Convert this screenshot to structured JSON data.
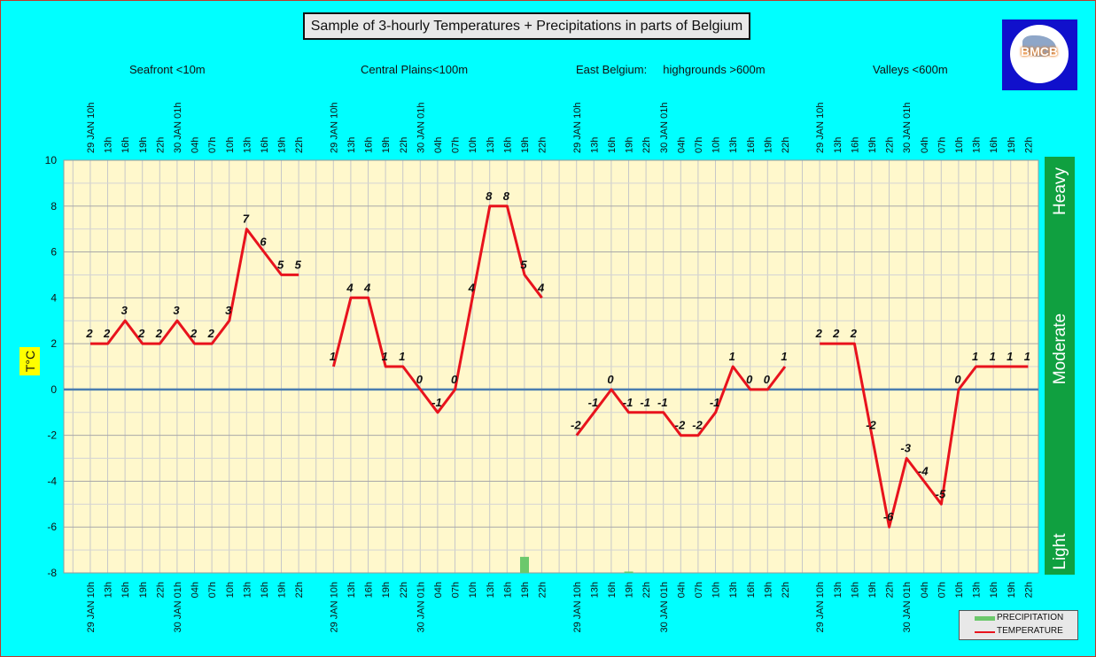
{
  "title": "Sample of 3-hourly Temperatures + Precipitations in parts of Belgium",
  "logo_text": "BMCB",
  "regions": [
    "Seafront <10m",
    "Central Plains<100m",
    "East Belgium:     highgrounds >600m",
    "Valleys <600m"
  ],
  "ylabel": "T°C",
  "intensity_labels": [
    "Heavy",
    "Moderate",
    "Light"
  ],
  "legend": {
    "precipitation": "PRECIPITATION",
    "temperature": "TEMPERATURE"
  },
  "colors": {
    "background": "#00ffff",
    "plot": "#fff8cc",
    "temperature": "#e8131d",
    "precipitation": "#6cc86c",
    "zero_line": "#4a7db0",
    "intensity_bar": "#10a040"
  },
  "chart_data": {
    "type": "line",
    "ylabel": "T°C",
    "ylim": [
      -8,
      10
    ],
    "yticks": [
      -8,
      -6,
      -4,
      -2,
      0,
      2,
      4,
      6,
      8,
      10
    ],
    "grid": true,
    "legend_position": "bottom-right",
    "x_labels": [
      "29 JAN 10h",
      "13h",
      "16h",
      "19h",
      "22h",
      "30 JAN 01h",
      "04h",
      "07h",
      "10h",
      "13h",
      "16h",
      "19h",
      "22h"
    ],
    "panels": [
      {
        "region": "Seafront <10m",
        "temperature": [
          2,
          2,
          3,
          2,
          2,
          3,
          2,
          2,
          3,
          7,
          6,
          5,
          5
        ],
        "precipitation": [
          0,
          0,
          0,
          0,
          0,
          0,
          0,
          0,
          0,
          0,
          0,
          0,
          0
        ]
      },
      {
        "region": "Central Plains<100m",
        "temperature": [
          1,
          4,
          4,
          1,
          1,
          0,
          -1,
          0,
          4,
          8,
          8,
          5,
          4
        ],
        "precipitation": [
          0,
          0,
          0,
          0,
          0,
          0,
          0,
          0,
          0,
          0,
          0,
          0.7,
          0
        ]
      },
      {
        "region": "East Belgium:     highgrounds >600m",
        "temperature": [
          -2,
          -1,
          0,
          -1,
          -1,
          -1,
          -2,
          -2,
          -1,
          1,
          0,
          0,
          1
        ],
        "precipitation": [
          0,
          0,
          0,
          0.05,
          0,
          0,
          0,
          0,
          0,
          0,
          0,
          0,
          0
        ]
      },
      {
        "region": "Valleys <600m",
        "temperature": [
          2,
          2,
          2,
          -2,
          -6,
          -3,
          -4,
          -5,
          0,
          1,
          1,
          1,
          1
        ],
        "precipitation": [
          0,
          0,
          0,
          0,
          0,
          0,
          0,
          0,
          0,
          0,
          0,
          0,
          0
        ]
      }
    ],
    "series": [
      {
        "name": "PRECIPITATION"
      },
      {
        "name": "TEMPERATURE"
      }
    ]
  }
}
